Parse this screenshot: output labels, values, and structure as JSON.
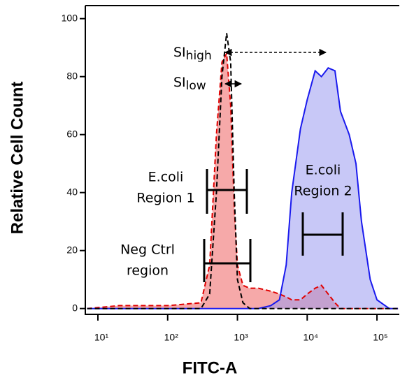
{
  "chart_data": {
    "type": "area",
    "x_label": "FITC-A",
    "y_label": "Relative Cell Count",
    "x_log": true,
    "x": [
      7,
      20,
      100,
      300,
      400,
      500,
      600,
      700,
      800,
      900,
      1000,
      1200,
      1500,
      2000,
      3000,
      4000,
      5000,
      6000,
      8000,
      10000,
      13000,
      16000,
      20000,
      25000,
      30000,
      40000,
      50000,
      60000,
      80000,
      100000,
      150000,
      200000
    ],
    "series": [
      {
        "color": "#e00000",
        "fill": "#f5a0a0",
        "dashed": true,
        "filled": true,
        "values": [
          0,
          1,
          1,
          2,
          15,
          60,
          85,
          88,
          70,
          35,
          15,
          8,
          7,
          7,
          6,
          5,
          4,
          3,
          3,
          5,
          7,
          8,
          5,
          2,
          0,
          0,
          0,
          0,
          0,
          0,
          0,
          0
        ]
      },
      {
        "color": "#1a1aee",
        "fill": "#9a9af0",
        "dashed": false,
        "filled": true,
        "values": [
          0,
          0,
          0,
          0,
          0,
          0,
          0,
          0,
          0,
          0,
          0,
          0,
          0,
          0,
          1,
          3,
          15,
          40,
          62,
          72,
          82,
          80,
          83,
          82,
          68,
          60,
          50,
          30,
          10,
          3,
          0,
          0
        ]
      },
      {
        "color": "#000000",
        "dashed": true,
        "filled": false,
        "values": [
          0,
          0,
          0,
          0,
          5,
          40,
          80,
          95,
          85,
          40,
          10,
          2,
          0,
          0,
          0,
          0,
          0,
          0,
          0,
          0,
          0,
          0,
          0,
          0,
          0,
          0,
          0,
          0,
          0,
          0,
          0,
          0
        ]
      }
    ],
    "xlim": [
      6.6,
      209000
    ],
    "ylim": [
      -2,
      104.5
    ],
    "xticks": [
      {
        "value": 10,
        "label": "10¹"
      },
      {
        "value": 100,
        "label": "10²"
      },
      {
        "value": 1000,
        "label": "10³"
      },
      {
        "value": 10000,
        "label": "10⁴"
      },
      {
        "value": 100000,
        "label": "10⁵"
      }
    ],
    "yticks": [
      0,
      20,
      40,
      60,
      80,
      100
    ],
    "annotations": [
      {
        "text": "SI",
        "subscript": "high"
      },
      {
        "text": "SI",
        "subscript": "low"
      },
      {
        "lines": [
          "E.coli",
          "Region 1"
        ]
      },
      {
        "lines": [
          "Neg Ctrl",
          "region"
        ]
      },
      {
        "lines": [
          "E.coli",
          "Region 2"
        ]
      }
    ]
  }
}
